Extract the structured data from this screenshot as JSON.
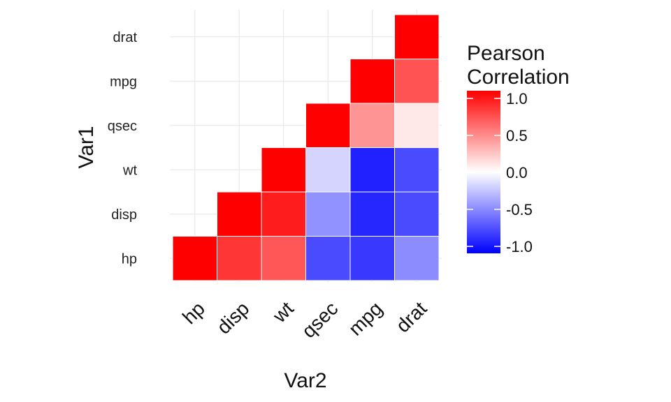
{
  "chart_data": {
    "type": "heatmap",
    "variables": [
      "hp",
      "disp",
      "wt",
      "qsec",
      "mpg",
      "drat"
    ],
    "xlabel": "Var2",
    "ylabel": "Var1",
    "legend": {
      "title_line1": "Pearson",
      "title_line2": "Correlation",
      "ticks": [
        {
          "value": 1.0,
          "label": "1.0"
        },
        {
          "value": 0.5,
          "label": "0.5"
        },
        {
          "value": 0.0,
          "label": "0.0"
        },
        {
          "value": -0.5,
          "label": "-0.5"
        },
        {
          "value": -1.0,
          "label": "-1.0"
        }
      ],
      "range": [
        -1,
        1
      ],
      "placement": "right"
    },
    "colors": {
      "low": "#0000ff",
      "mid": "#ffffff",
      "high": "#ff0000"
    },
    "grid": true,
    "cells": [
      {
        "x": "hp",
        "y": "hp",
        "value": 1.0
      },
      {
        "x": "disp",
        "y": "hp",
        "value": 0.79
      },
      {
        "x": "wt",
        "y": "hp",
        "value": 0.66
      },
      {
        "x": "qsec",
        "y": "hp",
        "value": -0.71
      },
      {
        "x": "mpg",
        "y": "hp",
        "value": -0.78
      },
      {
        "x": "drat",
        "y": "hp",
        "value": -0.45
      },
      {
        "x": "disp",
        "y": "disp",
        "value": 1.0
      },
      {
        "x": "wt",
        "y": "disp",
        "value": 0.89
      },
      {
        "x": "qsec",
        "y": "disp",
        "value": -0.43
      },
      {
        "x": "mpg",
        "y": "disp",
        "value": -0.85
      },
      {
        "x": "drat",
        "y": "disp",
        "value": -0.71
      },
      {
        "x": "wt",
        "y": "wt",
        "value": 1.0
      },
      {
        "x": "qsec",
        "y": "wt",
        "value": -0.17
      },
      {
        "x": "mpg",
        "y": "wt",
        "value": -0.87
      },
      {
        "x": "drat",
        "y": "wt",
        "value": -0.71
      },
      {
        "x": "qsec",
        "y": "qsec",
        "value": 1.0
      },
      {
        "x": "mpg",
        "y": "qsec",
        "value": 0.42
      },
      {
        "x": "drat",
        "y": "qsec",
        "value": 0.09
      },
      {
        "x": "mpg",
        "y": "mpg",
        "value": 1.0
      },
      {
        "x": "drat",
        "y": "mpg",
        "value": 0.68
      },
      {
        "x": "drat",
        "y": "drat",
        "value": 1.0
      }
    ]
  }
}
